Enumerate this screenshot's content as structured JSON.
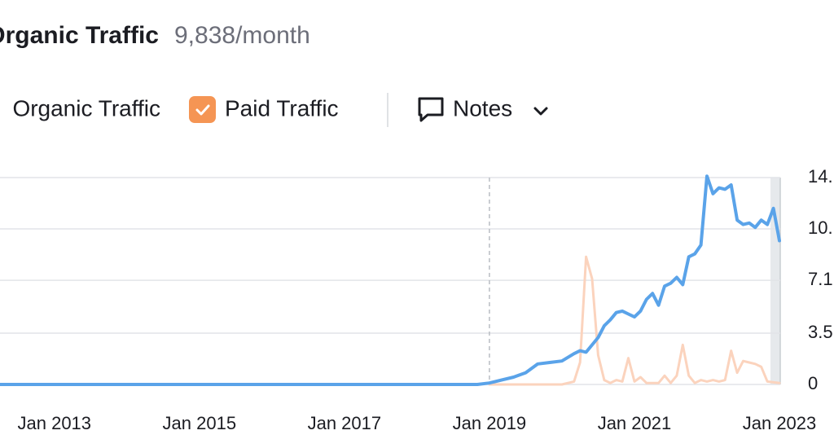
{
  "chart_data": {
    "type": "line",
    "title": "Organic Traffic",
    "subtitle": "9,838/month",
    "notes_label": "Notes",
    "xlim": [
      "2012-04",
      "2023-01"
    ],
    "xticks": [
      {
        "value": "2013-01",
        "label": "Jan 2013"
      },
      {
        "value": "2015-01",
        "label": "Jan 2015"
      },
      {
        "value": "2017-01",
        "label": "Jan 2017"
      },
      {
        "value": "2019-01",
        "label": "Jan 2019"
      },
      {
        "value": "2021-01",
        "label": "Jan 2021"
      },
      {
        "value": "2023-01",
        "label": "Jan 2023"
      }
    ],
    "ylim": [
      0,
      14100
    ],
    "yticks": [
      0,
      {
        "value": 3500,
        "label": "3.5"
      },
      {
        "value": 7100,
        "label": "7.1K"
      },
      {
        "value": 10600,
        "label": "10."
      },
      {
        "value": 14100,
        "label": "14."
      }
    ],
    "grid": true,
    "series": [
      {
        "name": "Organic Traffic",
        "color": "#5aa3e9",
        "checked": true,
        "x": [
          "2012-04",
          "2018-11",
          "2019-01",
          "2019-03",
          "2019-05",
          "2019-07",
          "2019-09",
          "2019-11",
          "2020-01",
          "2020-03",
          "2020-04",
          "2020-05",
          "2020-06",
          "2020-07",
          "2020-08",
          "2020-09",
          "2020-10",
          "2020-11",
          "2020-12",
          "2021-01",
          "2021-02",
          "2021-03",
          "2021-04",
          "2021-05",
          "2021-06",
          "2021-07",
          "2021-08",
          "2021-09",
          "2021-10",
          "2021-11",
          "2021-12",
          "2022-01",
          "2022-02",
          "2022-03",
          "2022-04",
          "2022-05",
          "2022-06",
          "2022-07",
          "2022-08",
          "2022-09",
          "2022-10",
          "2022-11",
          "2022-12",
          "2023-01"
        ],
        "values": [
          0,
          0,
          100,
          300,
          500,
          800,
          1400,
          1500,
          1600,
          2100,
          2300,
          2200,
          2700,
          3200,
          4000,
          4400,
          4900,
          5000,
          4800,
          4600,
          5000,
          5800,
          6200,
          5400,
          6700,
          6900,
          7300,
          6800,
          8700,
          8900,
          9500,
          14200,
          13000,
          13400,
          13300,
          13600,
          11200,
          10900,
          11000,
          10700,
          11200,
          10900,
          12000,
          9800
        ]
      },
      {
        "name": "Paid Traffic",
        "color": "#fbd3bd",
        "checked": true,
        "x": [
          "2019-01",
          "2019-07",
          "2020-01",
          "2020-03",
          "2020-04",
          "2020-05",
          "2020-06",
          "2020-07",
          "2020-08",
          "2020-09",
          "2020-10",
          "2020-11",
          "2020-12",
          "2021-01",
          "2021-02",
          "2021-03",
          "2021-04",
          "2021-05",
          "2021-06",
          "2021-07",
          "2021-08",
          "2021-09",
          "2021-10",
          "2021-11",
          "2021-12",
          "2022-01",
          "2022-02",
          "2022-03",
          "2022-04",
          "2022-05",
          "2022-06",
          "2022-07",
          "2022-08",
          "2022-09",
          "2022-10",
          "2022-11",
          "2023-01"
        ],
        "values": [
          0,
          0,
          0,
          200,
          1500,
          8700,
          7200,
          2000,
          300,
          100,
          300,
          200,
          1800,
          200,
          500,
          100,
          100,
          100,
          600,
          100,
          600,
          2700,
          600,
          100,
          300,
          200,
          300,
          200,
          300,
          2300,
          800,
          1600,
          1500,
          1400,
          1200,
          200,
          100
        ]
      }
    ]
  }
}
